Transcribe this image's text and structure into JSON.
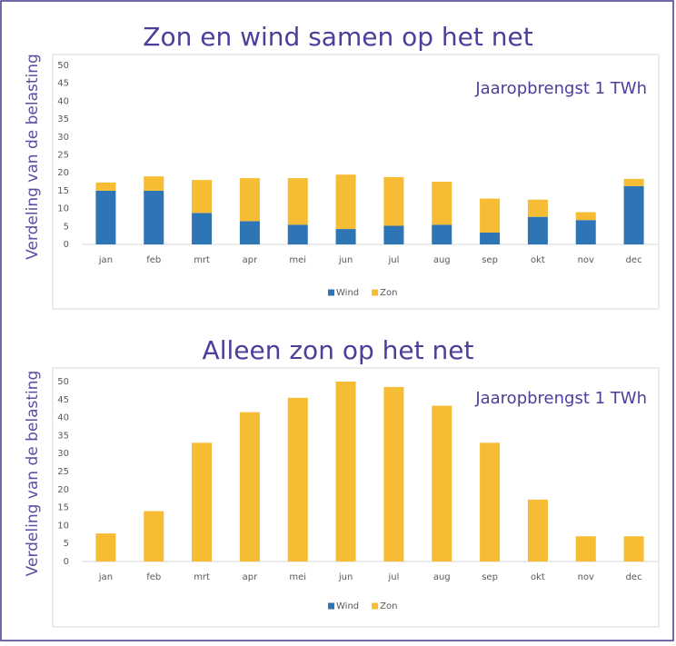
{
  "chart_data": [
    {
      "type": "stacked_bar",
      "title": "Zon en wind samen op het net",
      "y_label": "Verdeling van de belasting",
      "annotation": "Jaaropbrengst 1 TWh",
      "categories": [
        "jan",
        "feb",
        "mrt",
        "apr",
        "mei",
        "jun",
        "jul",
        "aug",
        "sep",
        "okt",
        "nov",
        "dec"
      ],
      "series": [
        {
          "name": "Wind",
          "color": "#2e75b6",
          "values": [
            15,
            15,
            8.8,
            6.5,
            5.5,
            4.3,
            5.2,
            5.5,
            3.3,
            7.7,
            6.8,
            16.3
          ]
        },
        {
          "name": "Zon",
          "color": "#f6bc33",
          "values": [
            2.3,
            4,
            9.2,
            12,
            13,
            15.2,
            13.6,
            12,
            9.5,
            4.8,
            2.2,
            2
          ]
        }
      ],
      "ylim": [
        0,
        50
      ],
      "yticks": [
        0,
        5,
        10,
        15,
        20,
        25,
        30,
        35,
        40,
        45,
        50
      ],
      "legend": "bottom"
    },
    {
      "type": "stacked_bar",
      "title": "Alleen zon op het net",
      "y_label": "Verdeling van de belasting",
      "annotation": "Jaaropbrengst 1 TWh",
      "categories": [
        "jan",
        "feb",
        "mrt",
        "apr",
        "mei",
        "jun",
        "jul",
        "aug",
        "sep",
        "okt",
        "nov",
        "dec"
      ],
      "series": [
        {
          "name": "Wind",
          "color": "#2e75b6",
          "values": [
            0,
            0,
            0,
            0,
            0,
            0,
            0,
            0,
            0,
            0,
            0,
            0
          ]
        },
        {
          "name": "Zon",
          "color": "#f6bc33",
          "values": [
            7.8,
            14,
            33,
            41.5,
            45.5,
            50,
            48.5,
            43.3,
            33,
            17.2,
            7,
            7
          ]
        }
      ],
      "ylim": [
        0,
        50
      ],
      "yticks": [
        0,
        5,
        10,
        15,
        20,
        25,
        30,
        35,
        40,
        45,
        50
      ],
      "legend": "bottom"
    }
  ]
}
